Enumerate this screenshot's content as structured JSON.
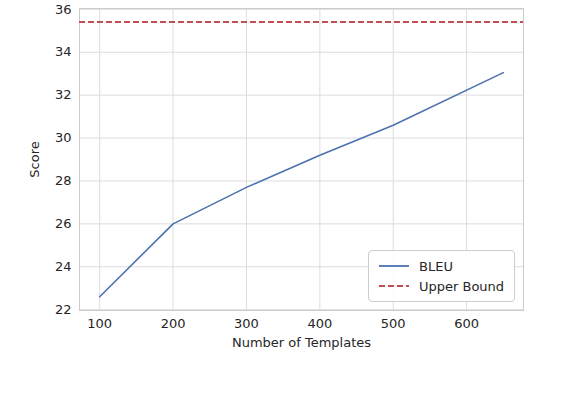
{
  "chart_data": {
    "type": "line",
    "x_label": "Number of Templates",
    "y_label": "Score",
    "x": [
      100,
      200,
      300,
      400,
      500,
      650
    ],
    "series": [
      {
        "name": "BLEU",
        "color": "#4c72b0",
        "line_style": "solid",
        "values": [
          22.6,
          26.0,
          27.7,
          29.2,
          30.6,
          33.05
        ]
      },
      {
        "name": "Upper Bound",
        "type": "hline",
        "color": "#c44e52",
        "line_style": "dashed",
        "values": [
          35.4,
          35.4,
          35.4,
          35.4,
          35.4,
          35.4
        ]
      }
    ],
    "xlim": [
      72.5,
      677.5
    ],
    "ylim": [
      21.96,
      36.04
    ],
    "xticks": [
      100,
      200,
      300,
      400,
      500,
      600
    ],
    "yticks": [
      22,
      24,
      26,
      28,
      30,
      32,
      34,
      36
    ],
    "grid": true,
    "legend": "lower right"
  }
}
